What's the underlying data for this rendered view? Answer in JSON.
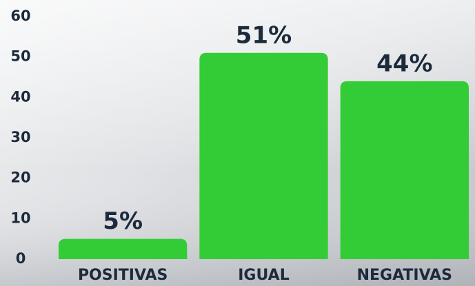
{
  "chart_data": {
    "type": "bar",
    "categories": [
      "POSITIVAS",
      "IGUAL",
      "NEGATIVAS"
    ],
    "values": [
      5,
      51,
      44
    ],
    "value_labels": [
      "5%",
      "51%",
      "44%"
    ],
    "color": "#34cc36",
    "ylim": [
      0,
      60
    ],
    "yticks": [
      0,
      10,
      20,
      30,
      40,
      50,
      60
    ]
  }
}
